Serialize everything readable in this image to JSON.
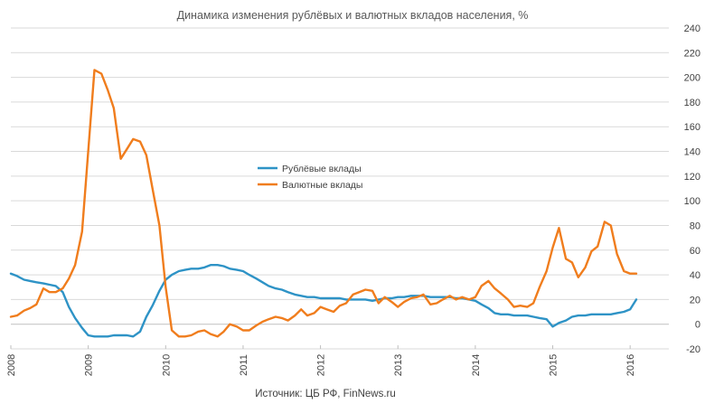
{
  "chart_data": {
    "type": "line",
    "title": "Динамика изменения рублёвых и валютных вкладов населения, %",
    "source": "Источник: ЦБ РФ, FinNews.ru",
    "x_ticks": [
      "2008",
      "2009",
      "2010",
      "2011",
      "2012",
      "2013",
      "2014",
      "2015",
      "2016"
    ],
    "y_ticks": [
      "-20",
      "0",
      "20",
      "40",
      "60",
      "80",
      "100",
      "120",
      "140",
      "160",
      "180",
      "200",
      "220",
      "240"
    ],
    "xlim": [
      2008,
      2016.5
    ],
    "ylim": [
      -20,
      240
    ],
    "grid": "horizontal",
    "y_axis_position": "right",
    "legend_position": "center-left",
    "series": [
      {
        "name": "Рублёвые вклады",
        "color": "#2E93C6",
        "points": [
          [
            2008.0,
            41
          ],
          [
            2008.08,
            39
          ],
          [
            2008.17,
            36
          ],
          [
            2008.25,
            35
          ],
          [
            2008.33,
            34
          ],
          [
            2008.42,
            33
          ],
          [
            2008.5,
            32
          ],
          [
            2008.58,
            31
          ],
          [
            2008.67,
            26
          ],
          [
            2008.75,
            14
          ],
          [
            2008.83,
            5
          ],
          [
            2008.92,
            -3
          ],
          [
            2009.0,
            -9
          ],
          [
            2009.08,
            -10
          ],
          [
            2009.17,
            -10
          ],
          [
            2009.25,
            -10
          ],
          [
            2009.33,
            -9
          ],
          [
            2009.42,
            -9
          ],
          [
            2009.5,
            -9
          ],
          [
            2009.58,
            -10
          ],
          [
            2009.67,
            -6
          ],
          [
            2009.75,
            6
          ],
          [
            2009.83,
            15
          ],
          [
            2009.92,
            27
          ],
          [
            2010.0,
            36
          ],
          [
            2010.08,
            40
          ],
          [
            2010.17,
            43
          ],
          [
            2010.25,
            44
          ],
          [
            2010.33,
            45
          ],
          [
            2010.42,
            45
          ],
          [
            2010.5,
            46
          ],
          [
            2010.58,
            48
          ],
          [
            2010.67,
            48
          ],
          [
            2010.75,
            47
          ],
          [
            2010.83,
            45
          ],
          [
            2010.92,
            44
          ],
          [
            2011.0,
            43
          ],
          [
            2011.08,
            40
          ],
          [
            2011.17,
            37
          ],
          [
            2011.25,
            34
          ],
          [
            2011.33,
            31
          ],
          [
            2011.42,
            29
          ],
          [
            2011.5,
            28
          ],
          [
            2011.58,
            26
          ],
          [
            2011.67,
            24
          ],
          [
            2011.75,
            23
          ],
          [
            2011.83,
            22
          ],
          [
            2011.92,
            22
          ],
          [
            2012.0,
            21
          ],
          [
            2012.08,
            21
          ],
          [
            2012.17,
            21
          ],
          [
            2012.25,
            21
          ],
          [
            2012.33,
            20
          ],
          [
            2012.42,
            20
          ],
          [
            2012.5,
            20
          ],
          [
            2012.58,
            20
          ],
          [
            2012.67,
            19
          ],
          [
            2012.75,
            20
          ],
          [
            2012.83,
            21
          ],
          [
            2012.92,
            21
          ],
          [
            2013.0,
            22
          ],
          [
            2013.08,
            22
          ],
          [
            2013.17,
            23
          ],
          [
            2013.25,
            23
          ],
          [
            2013.33,
            23
          ],
          [
            2013.42,
            22
          ],
          [
            2013.5,
            22
          ],
          [
            2013.58,
            22
          ],
          [
            2013.67,
            22
          ],
          [
            2013.75,
            21
          ],
          [
            2013.83,
            21
          ],
          [
            2013.92,
            20
          ],
          [
            2014.0,
            19
          ],
          [
            2014.08,
            16
          ],
          [
            2014.17,
            13
          ],
          [
            2014.25,
            9
          ],
          [
            2014.33,
            8
          ],
          [
            2014.42,
            8
          ],
          [
            2014.5,
            7
          ],
          [
            2014.58,
            7
          ],
          [
            2014.67,
            7
          ],
          [
            2014.75,
            6
          ],
          [
            2014.83,
            5
          ],
          [
            2014.92,
            4
          ],
          [
            2015.0,
            -2
          ],
          [
            2015.08,
            1
          ],
          [
            2015.17,
            3
          ],
          [
            2015.25,
            6
          ],
          [
            2015.33,
            7
          ],
          [
            2015.42,
            7
          ],
          [
            2015.5,
            8
          ],
          [
            2015.58,
            8
          ],
          [
            2015.67,
            8
          ],
          [
            2015.75,
            8
          ],
          [
            2015.83,
            9
          ],
          [
            2015.92,
            10
          ],
          [
            2016.0,
            12
          ],
          [
            2016.08,
            20
          ]
        ]
      },
      {
        "name": "Валютные вклады",
        "color": "#F07D1D",
        "points": [
          [
            2008.0,
            6
          ],
          [
            2008.08,
            7
          ],
          [
            2008.17,
            11
          ],
          [
            2008.25,
            13
          ],
          [
            2008.33,
            16
          ],
          [
            2008.42,
            29
          ],
          [
            2008.5,
            26
          ],
          [
            2008.58,
            26
          ],
          [
            2008.67,
            29
          ],
          [
            2008.75,
            37
          ],
          [
            2008.83,
            48
          ],
          [
            2008.92,
            75
          ],
          [
            2009.0,
            140
          ],
          [
            2009.08,
            206
          ],
          [
            2009.17,
            203
          ],
          [
            2009.25,
            190
          ],
          [
            2009.33,
            175
          ],
          [
            2009.42,
            134
          ],
          [
            2009.5,
            142
          ],
          [
            2009.58,
            150
          ],
          [
            2009.67,
            148
          ],
          [
            2009.75,
            137
          ],
          [
            2009.83,
            110
          ],
          [
            2009.92,
            80
          ],
          [
            2010.0,
            30
          ],
          [
            2010.08,
            -5
          ],
          [
            2010.17,
            -10
          ],
          [
            2010.25,
            -10
          ],
          [
            2010.33,
            -9
          ],
          [
            2010.42,
            -6
          ],
          [
            2010.5,
            -5
          ],
          [
            2010.58,
            -8
          ],
          [
            2010.67,
            -10
          ],
          [
            2010.75,
            -6
          ],
          [
            2010.83,
            0
          ],
          [
            2010.92,
            -2
          ],
          [
            2011.0,
            -5
          ],
          [
            2011.08,
            -5
          ],
          [
            2011.17,
            -1
          ],
          [
            2011.25,
            2
          ],
          [
            2011.33,
            4
          ],
          [
            2011.42,
            6
          ],
          [
            2011.5,
            5
          ],
          [
            2011.58,
            3
          ],
          [
            2011.67,
            7
          ],
          [
            2011.75,
            12
          ],
          [
            2011.83,
            7
          ],
          [
            2011.92,
            9
          ],
          [
            2012.0,
            14
          ],
          [
            2012.08,
            12
          ],
          [
            2012.17,
            10
          ],
          [
            2012.25,
            15
          ],
          [
            2012.33,
            17
          ],
          [
            2012.42,
            24
          ],
          [
            2012.5,
            26
          ],
          [
            2012.58,
            28
          ],
          [
            2012.67,
            27
          ],
          [
            2012.75,
            17
          ],
          [
            2012.83,
            22
          ],
          [
            2012.92,
            18
          ],
          [
            2013.0,
            14
          ],
          [
            2013.08,
            18
          ],
          [
            2013.17,
            21
          ],
          [
            2013.25,
            22
          ],
          [
            2013.33,
            24
          ],
          [
            2013.42,
            16
          ],
          [
            2013.5,
            17
          ],
          [
            2013.58,
            20
          ],
          [
            2013.67,
            23
          ],
          [
            2013.75,
            20
          ],
          [
            2013.83,
            22
          ],
          [
            2013.92,
            20
          ],
          [
            2014.0,
            22
          ],
          [
            2014.08,
            31
          ],
          [
            2014.17,
            35
          ],
          [
            2014.25,
            29
          ],
          [
            2014.33,
            25
          ],
          [
            2014.42,
            20
          ],
          [
            2014.5,
            14
          ],
          [
            2014.58,
            15
          ],
          [
            2014.67,
            14
          ],
          [
            2014.75,
            17
          ],
          [
            2014.83,
            30
          ],
          [
            2014.92,
            43
          ],
          [
            2015.0,
            62
          ],
          [
            2015.08,
            78
          ],
          [
            2015.17,
            53
          ],
          [
            2015.25,
            50
          ],
          [
            2015.33,
            38
          ],
          [
            2015.42,
            46
          ],
          [
            2015.5,
            59
          ],
          [
            2015.58,
            63
          ],
          [
            2015.67,
            83
          ],
          [
            2015.75,
            80
          ],
          [
            2015.83,
            57
          ],
          [
            2015.92,
            43
          ],
          [
            2016.0,
            41
          ],
          [
            2016.08,
            41
          ]
        ]
      }
    ]
  }
}
